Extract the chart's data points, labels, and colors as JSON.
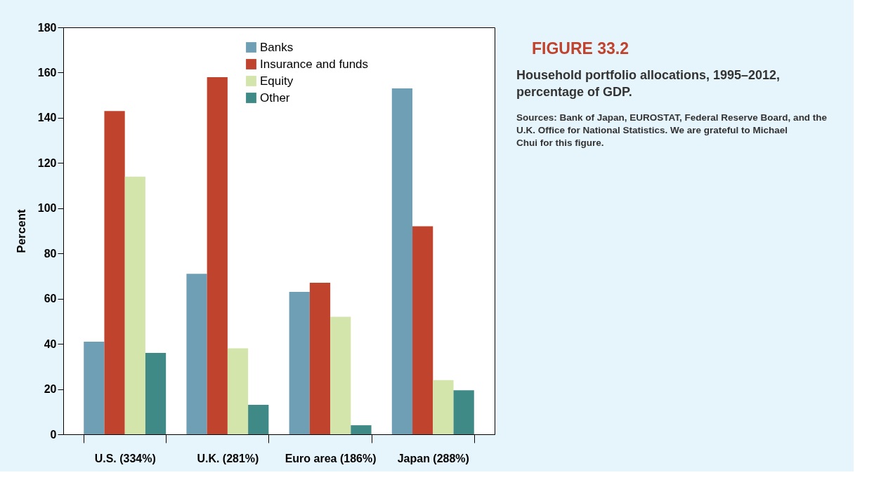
{
  "chart_data": {
    "type": "bar",
    "title": "FIGURE 33.2",
    "subtitle": "Household portfolio allocations, 1995–2012, percentage of GDP.",
    "ylabel": "Percent",
    "annotations": [
      "Sources: Bank of Japan, EUROSTAT, Federal Reserve Board, and the U.K. Office for National Statistics. We are grateful to Michael Chui for this figure."
    ],
    "categories": [
      "U.S. (334%)",
      "U.K. (281%)",
      "Euro area (186%)",
      "Japan (288%)"
    ],
    "series": [
      {
        "name": "Banks",
        "color": "#6f9fb5",
        "values": [
          41,
          71,
          63,
          153
        ]
      },
      {
        "name": "Insurance and funds",
        "color": "#c0432e",
        "values": [
          143,
          158,
          67,
          92
        ]
      },
      {
        "name": "Equity",
        "color": "#d3e5ab",
        "values": [
          114,
          38,
          52,
          24
        ]
      },
      {
        "name": "Other",
        "color": "#3f8a87",
        "values": [
          36,
          13,
          4,
          19.5
        ]
      }
    ],
    "ylim": [
      0,
      180
    ],
    "yticks": [
      0,
      20,
      40,
      60,
      80,
      100,
      120,
      140,
      160,
      180
    ],
    "grid": false,
    "legend": "top right"
  }
}
